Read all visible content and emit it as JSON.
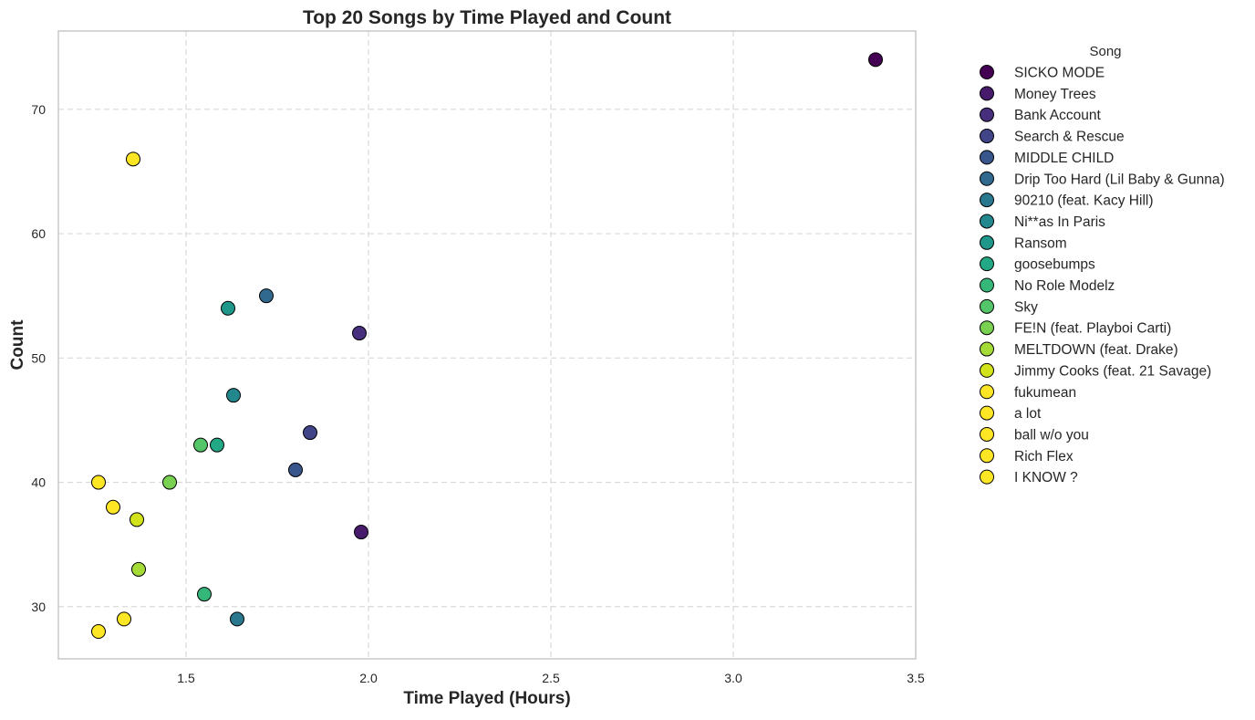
{
  "chart_data": {
    "type": "scatter",
    "title": "Top 20 Songs by Time Played and Count",
    "xlabel": "Time Played (Hours)",
    "ylabel": "Count",
    "xlim": [
      1.15,
      3.5
    ],
    "ylim": [
      25.8,
      76.3
    ],
    "xticks": [
      1.5,
      2.0,
      2.5,
      3.0,
      3.5
    ],
    "xtick_labels": [
      "1.5",
      "2.0",
      "2.5",
      "3.0",
      "3.5"
    ],
    "yticks": [
      30,
      40,
      50,
      60,
      70
    ],
    "ytick_labels": [
      "30",
      "40",
      "50",
      "60",
      "70"
    ],
    "grid": true,
    "legend_title": "Song",
    "legend_position": "outside-right",
    "series": [
      {
        "name": "SICKO MODE",
        "x": 3.39,
        "y": 74,
        "color": "#440154"
      },
      {
        "name": "Money Trees",
        "x": 1.98,
        "y": 36,
        "color": "#481a6c"
      },
      {
        "name": "Bank Account",
        "x": 1.975,
        "y": 52,
        "color": "#472f7d"
      },
      {
        "name": "Search & Rescue",
        "x": 1.84,
        "y": 44,
        "color": "#414487"
      },
      {
        "name": "MIDDLE CHILD",
        "x": 1.8,
        "y": 41,
        "color": "#39568c"
      },
      {
        "name": "Drip Too Hard (Lil Baby & Gunna)",
        "x": 1.72,
        "y": 55,
        "color": "#31688e"
      },
      {
        "name": "90210 (feat. Kacy Hill)",
        "x": 1.64,
        "y": 29,
        "color": "#2a788e"
      },
      {
        "name": "Ni**as In Paris",
        "x": 1.63,
        "y": 47,
        "color": "#23888e"
      },
      {
        "name": "Ransom",
        "x": 1.615,
        "y": 54,
        "color": "#1f988b"
      },
      {
        "name": "goosebumps",
        "x": 1.585,
        "y": 43,
        "color": "#22a884"
      },
      {
        "name": "No Role Modelz",
        "x": 1.55,
        "y": 31,
        "color": "#35b779"
      },
      {
        "name": "Sky",
        "x": 1.54,
        "y": 43,
        "color": "#54c568"
      },
      {
        "name": "FE!N (feat. Playboi Carti)",
        "x": 1.455,
        "y": 40,
        "color": "#7ad151"
      },
      {
        "name": "MELTDOWN (feat. Drake)",
        "x": 1.37,
        "y": 33,
        "color": "#a5db36"
      },
      {
        "name": "Jimmy Cooks (feat. 21 Savage)",
        "x": 1.365,
        "y": 37,
        "color": "#d2e21b"
      },
      {
        "name": "fukumean",
        "x": 1.355,
        "y": 66,
        "color": "#fde725"
      },
      {
        "name": "a lot",
        "x": 1.33,
        "y": 29,
        "color": "#fde725"
      },
      {
        "name": "ball w/o you",
        "x": 1.3,
        "y": 38,
        "color": "#fde725"
      },
      {
        "name": "Rich Flex",
        "x": 1.26,
        "y": 28,
        "color": "#fde725"
      },
      {
        "name": "I KNOW ?",
        "x": 1.26,
        "y": 40,
        "color": "#fde725"
      }
    ]
  }
}
